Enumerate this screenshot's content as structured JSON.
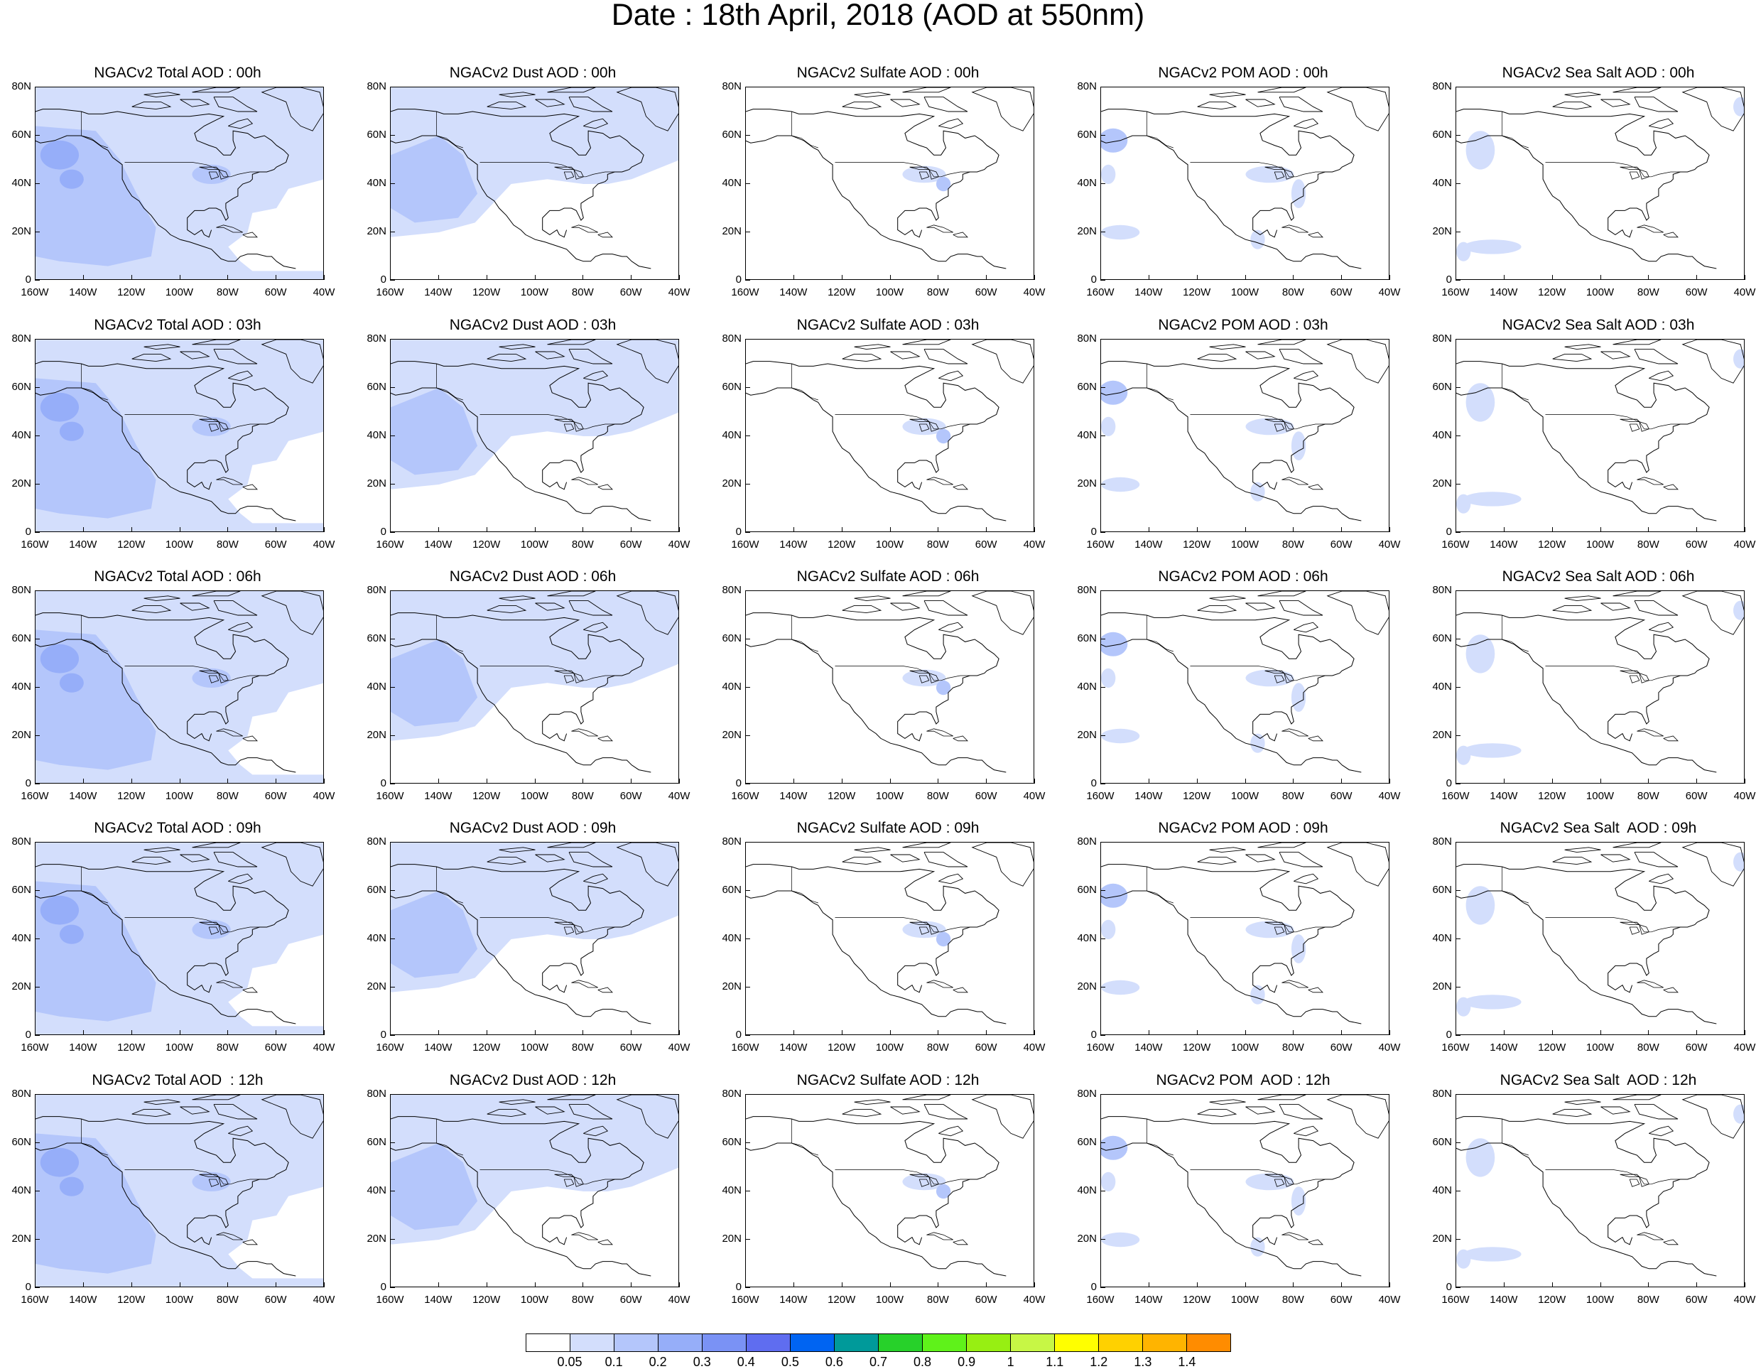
{
  "title": "Date : 18th April, 2018 (AOD at 550nm)",
  "axes": {
    "lon_ticks": [
      "160W",
      "140W",
      "120W",
      "100W",
      "80W",
      "60W",
      "40W"
    ],
    "lat_ticks": [
      "80N",
      "60N",
      "40N",
      "20N",
      "0"
    ],
    "lon_range": [
      -160,
      -40
    ],
    "lat_range": [
      0,
      80
    ]
  },
  "rows": [
    {
      "hour": "00h",
      "panels": [
        {
          "title": "NGACv2 Total AOD : 00h",
          "component": "total"
        },
        {
          "title": "NGACv2 Dust AOD : 00h",
          "component": "dust"
        },
        {
          "title": "NGACv2 Sulfate AOD : 00h",
          "component": "sulfate"
        },
        {
          "title": "NGACv2 POM AOD : 00h",
          "component": "pom"
        },
        {
          "title": "NGACv2 Sea Salt AOD : 00h",
          "component": "seasalt"
        }
      ]
    },
    {
      "hour": "03h",
      "panels": [
        {
          "title": "NGACv2 Total AOD : 03h",
          "component": "total"
        },
        {
          "title": "NGACv2 Dust AOD : 03h",
          "component": "dust"
        },
        {
          "title": "NGACv2 Sulfate AOD : 03h",
          "component": "sulfate"
        },
        {
          "title": "NGACv2 POM AOD : 03h",
          "component": "pom"
        },
        {
          "title": "NGACv2 Sea Salt AOD : 03h",
          "component": "seasalt"
        }
      ]
    },
    {
      "hour": "06h",
      "panels": [
        {
          "title": "NGACv2 Total AOD : 06h",
          "component": "total"
        },
        {
          "title": "NGACv2 Dust AOD : 06h",
          "component": "dust"
        },
        {
          "title": "NGACv2 Sulfate AOD : 06h",
          "component": "sulfate"
        },
        {
          "title": "NGACv2 POM AOD : 06h",
          "component": "pom"
        },
        {
          "title": "NGACv2 Sea Salt AOD : 06h",
          "component": "seasalt"
        }
      ]
    },
    {
      "hour": "09h",
      "panels": [
        {
          "title": "NGACv2 Total AOD : 09h",
          "component": "total"
        },
        {
          "title": "NGACv2 Dust AOD : 09h",
          "component": "dust"
        },
        {
          "title": "NGACv2 Sulfate AOD : 09h",
          "component": "sulfate"
        },
        {
          "title": "NGACv2 POM AOD : 09h",
          "component": "pom"
        },
        {
          "title": "NGACv2 Sea Salt  AOD : 09h",
          "component": "seasalt"
        }
      ]
    },
    {
      "hour": "12h",
      "panels": [
        {
          "title": "NGACv2 Total AOD  : 12h",
          "component": "total"
        },
        {
          "title": "NGACv2 Dust AOD : 12h",
          "component": "dust"
        },
        {
          "title": "NGACv2 Sulfate AOD : 12h",
          "component": "sulfate"
        },
        {
          "title": "NGACv2 POM  AOD : 12h",
          "component": "pom"
        },
        {
          "title": "NGACv2 Sea Salt  AOD : 12h",
          "component": "seasalt"
        }
      ]
    }
  ],
  "colorbar": {
    "colors": [
      "#ffffff",
      "#d3defc",
      "#b4c6fb",
      "#96aef9",
      "#7a92f5",
      "#5f6df0",
      "#0064f2",
      "#009a9a",
      "#27d12a",
      "#5ff21a",
      "#97ef12",
      "#c7f745",
      "#ffff00",
      "#ffd100",
      "#ffb400",
      "#ff8c00",
      "#ff6a00",
      "#ff2a00"
    ],
    "labels": [
      "0.05",
      "0.1",
      "0.2",
      "0.3",
      "0.4",
      "0.5",
      "0.6",
      "0.7",
      "0.8",
      "0.9",
      "1",
      "1.1",
      "1.2",
      "1.3",
      "1.4"
    ]
  }
}
